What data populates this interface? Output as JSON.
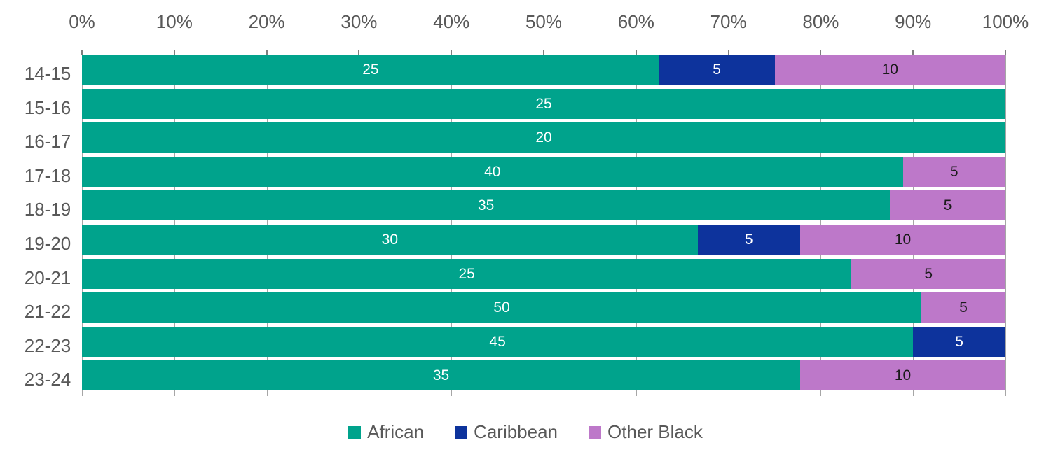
{
  "chart_data": {
    "type": "bar",
    "stacked": true,
    "orientation": "horizontal",
    "normalized": "100%-stacked",
    "title": "",
    "x_axis": {
      "position": "top",
      "min": 0,
      "max": 100,
      "grid": true,
      "ticks": [
        "0%",
        "10%",
        "20%",
        "30%",
        "40%",
        "50%",
        "60%",
        "70%",
        "80%",
        "90%",
        "100%"
      ]
    },
    "categories": [
      "14-15",
      "15-16",
      "16-17",
      "17-18",
      "18-19",
      "19-20",
      "20-21",
      "21-22",
      "22-23",
      "23-24"
    ],
    "series": [
      {
        "name": "African",
        "color": "#00A38C",
        "values": [
          25,
          25,
          20,
          40,
          35,
          30,
          25,
          50,
          45,
          35
        ]
      },
      {
        "name": "Caribbean",
        "color": "#0D339C",
        "values": [
          5,
          0,
          0,
          0,
          0,
          5,
          0,
          0,
          5,
          0
        ]
      },
      {
        "name": "Other Black",
        "color": "#BD78C9",
        "values": [
          10,
          0,
          0,
          5,
          5,
          10,
          5,
          5,
          0,
          10
        ]
      }
    ],
    "data_labels": {
      "shown": true,
      "colors_by_series": {
        "African": "#FFFFFF",
        "Caribbean": "#FFFFFF",
        "Other Black": "#1A1A1A"
      }
    },
    "legend": {
      "position": "bottom",
      "entries": [
        "African",
        "Caribbean",
        "Other Black"
      ]
    },
    "colors": {
      "gridline": "#A6A6A6",
      "tick": "#7F7F7F",
      "axis_text": "#595959"
    }
  }
}
